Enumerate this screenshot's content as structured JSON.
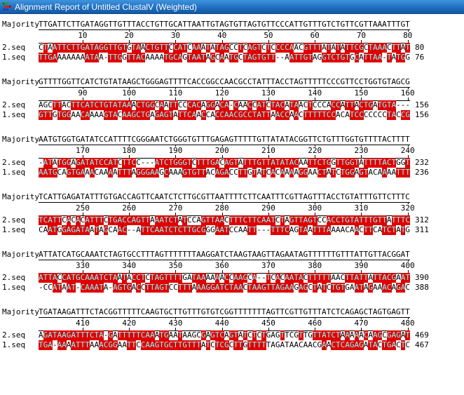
{
  "window": {
    "title": "Alignment Report of Untitled ClustalV (Weighted)",
    "icon": "alignment-app-icon"
  },
  "colors": {
    "titlebar_blue": "#1d6cbe",
    "match_background": "#e00000",
    "match_letter": "#80ffff",
    "plain_text": "#000000"
  },
  "labels": {
    "majority": "Majority",
    "seq2": "2.seq",
    "seq1": "1.seq"
  },
  "blocks": [
    {
      "majority": "TTGATTCTTGATAGGTTGTTTACCTGTTGCATTAATTGTAGTGTTAGTGTTCCCATTGTTTGTCTGTTCGTTAAATTTGT",
      "ticks": [
        10,
        20,
        30,
        40,
        50,
        60,
        70,
        80
      ],
      "rows": [
        {
          "label": "2.seq",
          "seq": "CTAATTCTTGATAGGTTGTGTAACTGTTCCATCAAATATAGCCTCAGTCTCCCCAACGTTTATATATTCGCTAAACTTAT",
          "end": 80
        },
        {
          "label": "1.seq",
          "seq": "TTGAAAAAAAATAA-TTGGTTACAAAATGCAGTAATAGCAATGCTAGTGTT--AATTGTAGGTCTGTGCATTAA-TATGG",
          "end": 76
        }
      ]
    },
    {
      "majority": "GTTTTGGTTCATCTGTATAAGCTGGGAGTTTTCACCGGCCAACGCCTATTTACCTAGTTTTTCCCGTTCCTGGTGTAGCG",
      "ticks": [
        90,
        100,
        110,
        120,
        130,
        140,
        150,
        160
      ],
      "rows": [
        {
          "label": "2.seq",
          "seq": "AGCTTACTTCATCTGTATAAACTGGCAATTCCCACAGGACA-CAACCATCTACATAACTCCCACCATTACTGATGTA---",
          "end": 156
        },
        {
          "label": "1.seq",
          "seq": "GTTGTGGAACAAAAGTACAAGCTGAGAGTATTCAACCACCAACGCCTATTAACCAACTTTTTCCACATCCCCCCCTACCG",
          "end": 156
        }
      ]
    },
    {
      "majority": "AATGTGGTGATATCCATTTTCGGGAATCTGGGTGTTTGAGAGTTTTTGTTATATACGGTTCTGTTTGGTGTTTTACTTTT",
      "ticks": [
        170,
        180,
        190,
        200,
        210,
        220,
        230,
        240
      ],
      "rows": [
        {
          "label": "2.seq",
          "seq": "-ATATGGAGATATCCATCTTCC---ATCTGGGTCTTTGACAGTATTTGTTATATACAATTCTGGTTGGTATTTTACTGGT",
          "end": 232
        },
        {
          "label": "1.seq",
          "seq": "AATGCAGTGAAACAAAATTTAGGGAAGCAAAGTGTTACAGACCTTGTATCACAAAAGGAACTATCTGGAGTACAAAATTT",
          "end": 236
        }
      ]
    },
    {
      "majority": "TCATTGAGATATTTGTGACCAGTTCAATCTCTTGCGTTAATTTTCTTCAATTTCGTTAGTTTACCTGTATTTGTTCTTTC",
      "ticks": [
        250,
        260,
        270,
        280,
        290,
        300,
        310,
        320
      ],
      "rows": [
        {
          "label": "2.seq",
          "seq": "TCATTCACACATTTCTGACCAGTTAAATCTATCCAGTTAACTTTCTTCAATCTAGTTAGTCCACCTGTATTTGTTATTTC",
          "end": 312
        },
        {
          "label": "1.seq",
          "seq": "CAATGGAGATAATAGCAAC--ATTCAATCTCTTGCGGGAATCCAATT---TTTCAGTAATTTAAAACAACTTCATCTATG",
          "end": 311
        }
      ]
    },
    {
      "majority": "ATTATCATGCAAATCTAGTGCCTTTAGTTTTTTTAAGGATCTAAGTAAGTTAGAATAGTTTTTTGTTTATTGTTACGGAT",
      "ticks": [
        330,
        340,
        350,
        360,
        370,
        380,
        390,
        400
      ],
      "rows": [
        {
          "label": "2.seq",
          "seq": "ATTACCATGCAAATCTAATACCTCTAGTTTTGATAAAAAACCAAGCA--TCACAATACTTTTTAACTTATTATTACGAAT",
          "end": 390
        },
        {
          "label": "1.seq",
          "seq": "-CCATAAT-CAAATA-AGTGACCTTAGTCCTTTAAAGGATCTAACTAAGTTAGAAGAGCTATCTGTGAATAGAAACAGAC",
          "end": 388
        }
      ]
    },
    {
      "majority": "TGATAAGATTTCTACGGTTTTTCAAGTGCTTGTTTGTGTCGGTTTTTTTAGTTCGTTGTTTATCTCAGAGCTAGTGAGTT",
      "ticks": [
        410,
        420,
        430,
        440,
        450,
        460,
        470,
        480
      ],
      "rows": [
        {
          "label": "2.seq",
          "seq": "AGATAAGATTTCTA-GATTTTTCAAATGAATAAGCGAGTCAGTATCTCTGAGTTCGTTGTTATCTAAAAACAAGCGAGAT",
          "end": 469
        },
        {
          "label": "1.seq",
          "seq": "TGA-AAAATTTAAACGGAATTCCAAGTGCTTGTTTATCTCGCTTGTTTTTAGATAACAACGAACTCAGAGATACTGACTC",
          "end": 467
        }
      ]
    }
  ]
}
